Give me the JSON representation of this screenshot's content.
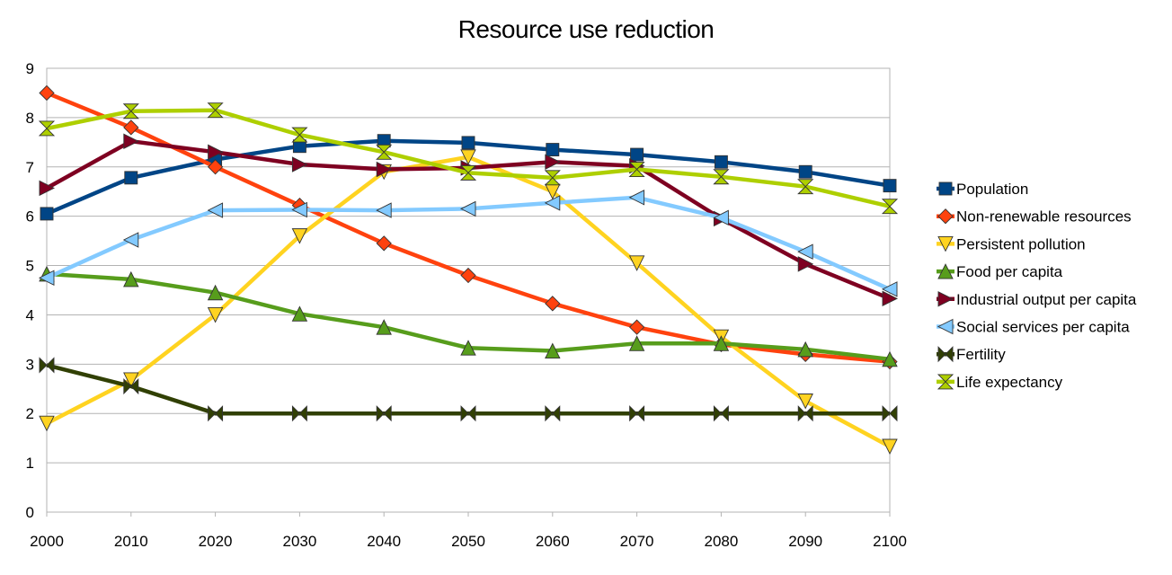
{
  "chart_data": {
    "type": "line",
    "title": "Resource use reduction",
    "x": [
      2000,
      2010,
      2020,
      2030,
      2040,
      2050,
      2060,
      2070,
      2080,
      2090,
      2100
    ],
    "xlim": [
      2000,
      2100
    ],
    "ylim": [
      0,
      9
    ],
    "yticks": [
      0,
      1,
      2,
      3,
      4,
      5,
      6,
      7,
      8,
      9
    ],
    "grid": true,
    "legend": "right",
    "series": [
      {
        "name": "Population",
        "color": "#004586",
        "marker": "square",
        "values": [
          6.05,
          6.78,
          7.15,
          7.42,
          7.53,
          7.49,
          7.35,
          7.25,
          7.1,
          6.9,
          6.62
        ]
      },
      {
        "name": "Non-renewable resources",
        "color": "#ff420e",
        "marker": "diamond",
        "values": [
          8.5,
          7.8,
          7.0,
          6.22,
          5.45,
          4.8,
          4.23,
          3.75,
          3.4,
          3.2,
          3.05
        ]
      },
      {
        "name": "Persistent pollution",
        "color": "#ffd320",
        "marker": "triangle-down",
        "values": [
          1.8,
          2.68,
          4.0,
          5.6,
          6.9,
          7.2,
          6.5,
          5.05,
          3.55,
          2.25,
          1.33
        ]
      },
      {
        "name": "Food per capita",
        "color": "#579d1c",
        "marker": "triangle-up",
        "values": [
          4.83,
          4.72,
          4.45,
          4.02,
          3.75,
          3.33,
          3.27,
          3.42,
          3.42,
          3.3,
          3.1
        ]
      },
      {
        "name": "Industrial output per capita",
        "color": "#7e0021",
        "marker": "triangle-right",
        "values": [
          6.57,
          7.52,
          7.3,
          7.05,
          6.95,
          6.98,
          7.1,
          7.02,
          5.95,
          5.03,
          4.33
        ]
      },
      {
        "name": "Social services per capita",
        "color": "#83caff",
        "marker": "triangle-left",
        "values": [
          4.75,
          5.52,
          6.12,
          6.13,
          6.12,
          6.15,
          6.27,
          6.38,
          5.97,
          5.28,
          4.52
        ]
      },
      {
        "name": "Fertility",
        "color": "#314004",
        "marker": "bowtie",
        "values": [
          2.98,
          2.55,
          2.0,
          2.0,
          2.0,
          2.0,
          2.0,
          2.0,
          2.0,
          2.0,
          2.0
        ]
      },
      {
        "name": "Life expectancy",
        "color": "#aecf00",
        "marker": "hourglass",
        "values": [
          7.78,
          8.13,
          8.15,
          7.65,
          7.3,
          6.88,
          6.78,
          6.95,
          6.8,
          6.6,
          6.2
        ]
      }
    ]
  }
}
